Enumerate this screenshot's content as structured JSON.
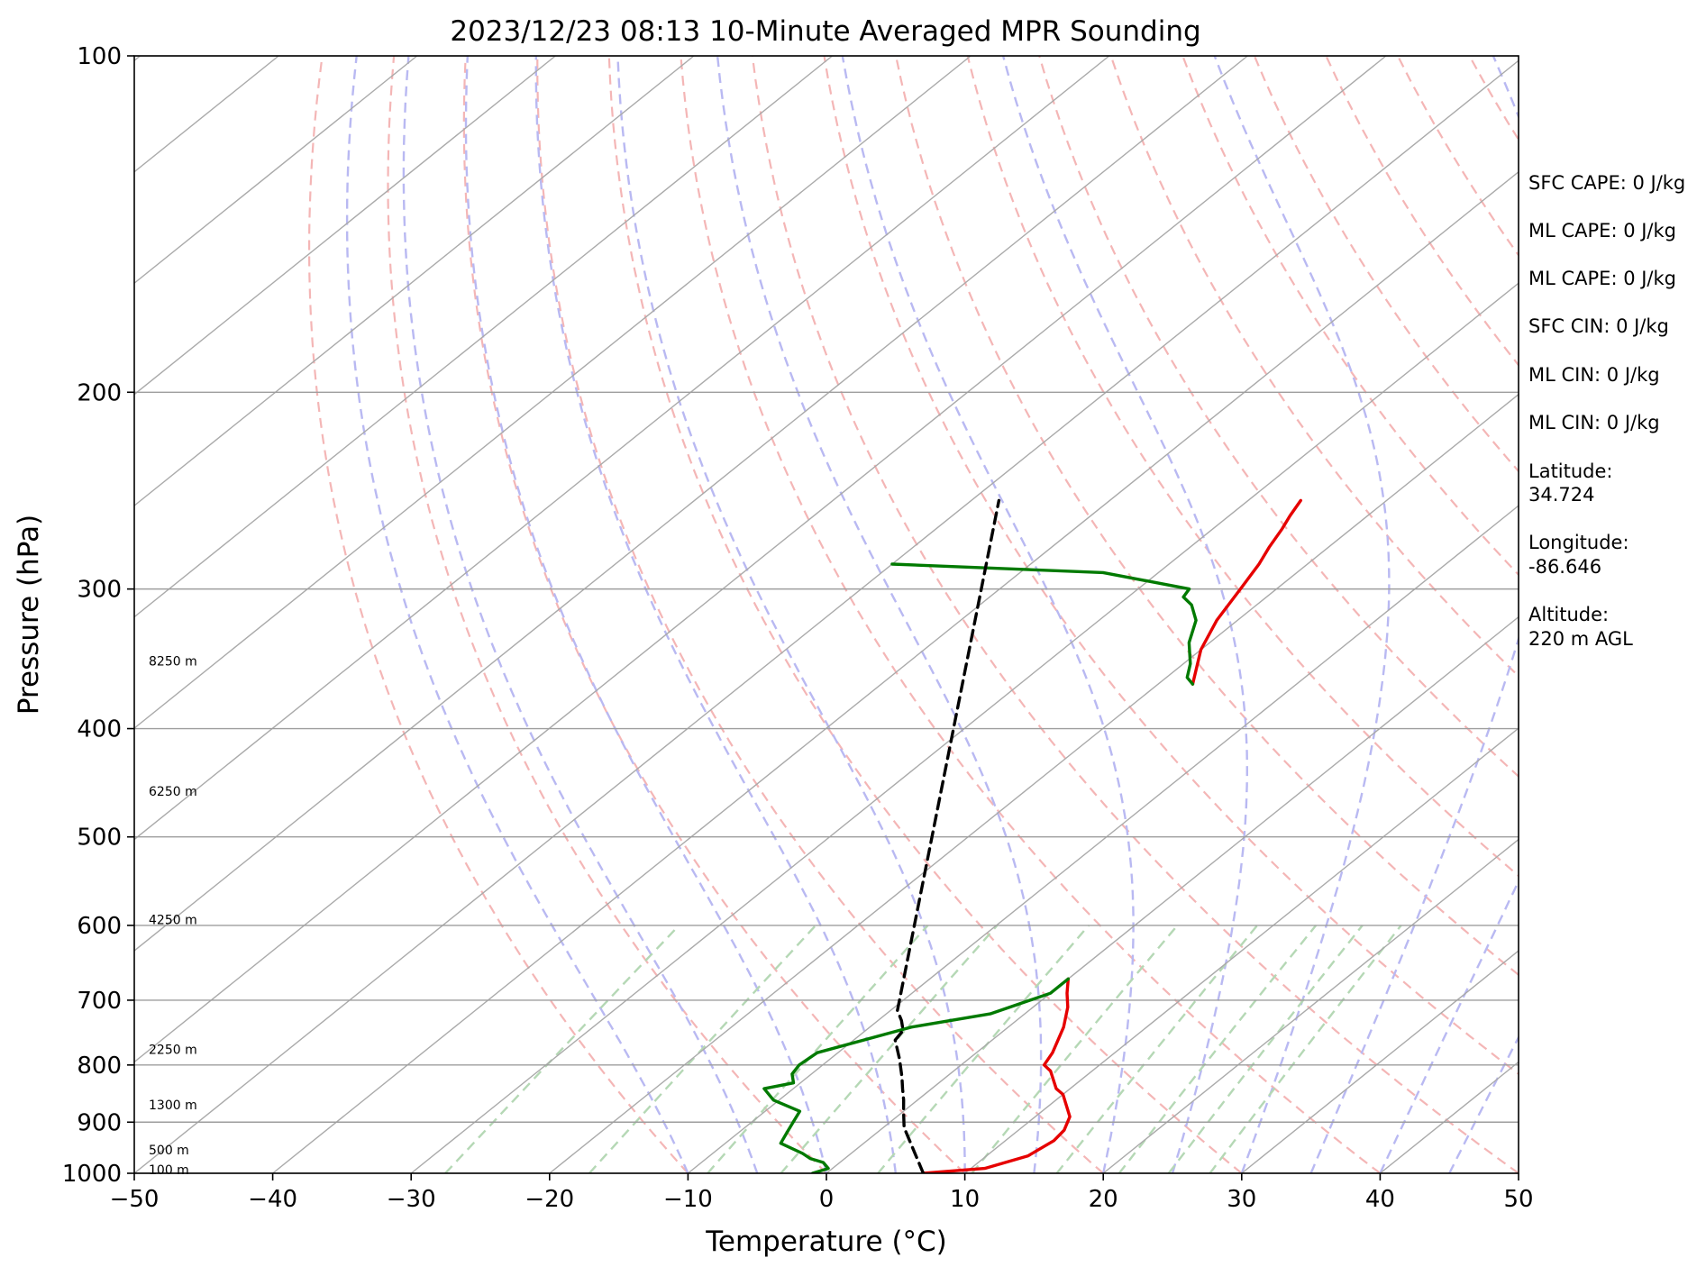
{
  "chart_data": {
    "type": "line",
    "title": "2023/12/23 08:13 10-Minute Averaged MPR Sounding",
    "xlabel": "Temperature (°C)",
    "ylabel": "Pressure (hPa)",
    "xlim": [
      -50,
      50
    ],
    "ylim": [
      1000,
      100
    ],
    "y_scale": "log",
    "skew": "skew-T",
    "grid": true,
    "x_ticks": [
      "−50",
      "−40",
      "−30",
      "−20",
      "−10",
      "0",
      "10",
      "20",
      "30",
      "40",
      "50"
    ],
    "x_tick_values": [
      -50,
      -40,
      -30,
      -20,
      -10,
      0,
      10,
      20,
      30,
      40,
      50
    ],
    "y_ticks": [
      "100",
      "200",
      "300",
      "400",
      "500",
      "600",
      "700",
      "800",
      "900",
      "1000"
    ],
    "y_tick_values": [
      100,
      200,
      300,
      400,
      500,
      600,
      700,
      800,
      900,
      1000
    ],
    "colors": {
      "temperature": "#e60000",
      "dewpoint": "#007a00",
      "parcel": "#000000",
      "isotherm": "#aaaaaa",
      "dry_adiabat": "#f4b6b6",
      "moist_adiabat": "#b9b9f2",
      "mixing_ratio": "#b5d8b5"
    },
    "series": [
      {
        "key": "temperature",
        "x": [
          7,
          11,
          13,
          13.5,
          13.3,
          12.5,
          10,
          9,
          7,
          6,
          5.5,
          4,
          2.5,
          1.2,
          0
        ],
        "y": [
          1000,
          990,
          965,
          935,
          915,
          890,
          850,
          840,
          810,
          800,
          780,
          740,
          710,
          690,
          670
        ],
        "continuation": {
          "x": [
            -17.5,
            -20,
            -21.5,
            -22.6,
            -23.5,
            -24.3,
            -25,
            -25.6,
            -26.2
          ],
          "y": [
            365,
            340,
            320,
            300,
            285,
            275,
            265,
            258,
            250
          ]
        }
      },
      {
        "key": "dewpoint",
        "x": [
          -1,
          -0.3,
          -1.2,
          -2.5,
          -3.5,
          -6,
          -6.5,
          -7,
          -7.5,
          -10.4,
          -12.1,
          -10.5,
          -11.4,
          -11.7,
          -11.5,
          -7,
          -2.5,
          0,
          0
        ],
        "y": [
          1000,
          990,
          978,
          970,
          960,
          940,
          920,
          900,
          880,
          860,
          840,
          830,
          815,
          800,
          780,
          740,
          720,
          690,
          670
        ],
        "continuation": {
          "x": [
            -17.5,
            -18.5,
            -19.5,
            -21.5,
            -23,
            -24.7,
            -26,
            -26.3,
            -34,
            -50
          ],
          "y": [
            365,
            360,
            350,
            335,
            320,
            310,
            305,
            300,
            290,
            285
          ]
        }
      },
      {
        "key": "parcel",
        "x": [
          7,
          1.5,
          0,
          -1,
          -2.1,
          -3.2,
          -5,
          -7,
          -7.3,
          -8.3,
          -9.5,
          -48
        ],
        "y": [
          1000,
          910,
          880,
          860,
          840,
          820,
          790,
          760,
          745,
          730,
          715,
          250
        ]
      }
    ],
    "dry_adiabats_theta_c": [
      -10,
      0,
      10,
      20,
      30,
      40,
      50,
      60,
      70,
      80,
      90,
      100,
      110,
      120,
      130,
      140,
      150,
      160,
      170,
      180,
      190
    ],
    "moist_adiabats_t1000_c": [
      -10,
      -5,
      0,
      5,
      10,
      15,
      20,
      25,
      30,
      35,
      40,
      45
    ],
    "mixing_ratio_lines_g_per_kg": [
      0.4,
      1,
      2,
      3,
      5,
      8,
      12,
      16,
      20,
      24
    ],
    "isotherms_c": [
      -160,
      -150,
      -140,
      -130,
      -120,
      -110,
      -100,
      -90,
      -80,
      -70,
      -60,
      -50,
      -40,
      -30,
      -20,
      -10,
      0,
      10,
      20,
      30,
      40,
      50
    ],
    "height_labels": [
      {
        "text": "100 m",
        "p": 993
      },
      {
        "text": "500 m",
        "p": 953
      },
      {
        "text": "1300 m",
        "p": 868
      },
      {
        "text": "2250 m",
        "p": 775
      },
      {
        "text": "4250 m",
        "p": 593
      },
      {
        "text": "6250 m",
        "p": 455
      },
      {
        "text": "8250 m",
        "p": 348
      }
    ],
    "annotations": [
      "SFC CAPE: 0 J/kg",
      "ML CAPE: 0 J/kg",
      "ML CAPE: 0 J/kg",
      "SFC CIN: 0 J/kg",
      "ML CIN: 0 J/kg",
      "ML CIN: 0 J/kg",
      "Latitude:",
      "34.724",
      "Longitude:",
      "-86.646",
      "Altitude:",
      "220 m AGL"
    ]
  }
}
